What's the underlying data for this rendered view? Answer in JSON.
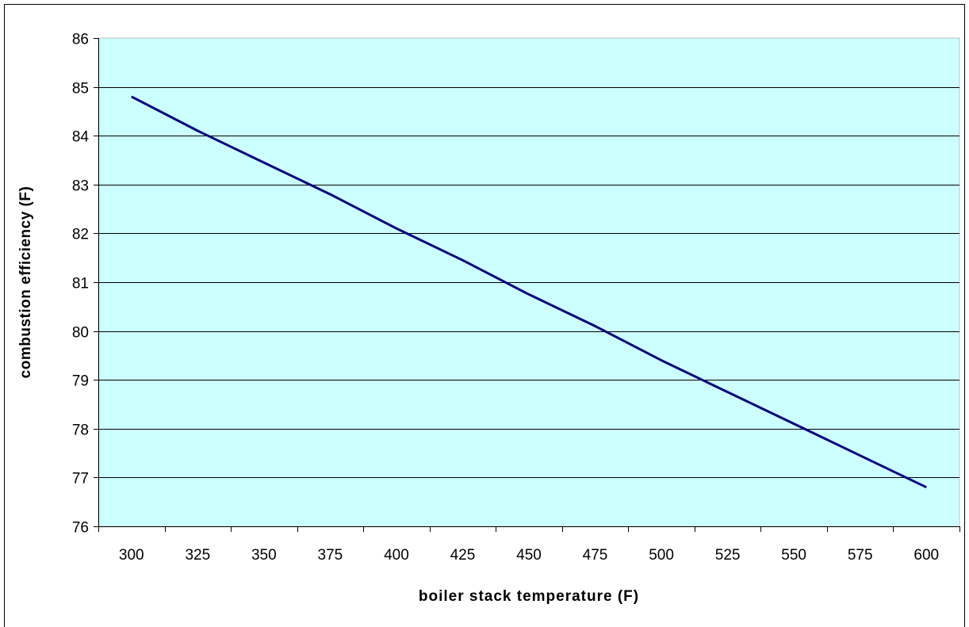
{
  "chart_data": {
    "type": "line",
    "title": "",
    "xlabel": "boiler stack temperature (F)",
    "ylabel": "combustion efficiency (F)",
    "categories": [
      "300",
      "325",
      "350",
      "375",
      "400",
      "425",
      "450",
      "475",
      "500",
      "525",
      "550",
      "575",
      "600"
    ],
    "series": [
      {
        "values": [
          84.8,
          84.1,
          83.45,
          82.8,
          82.1,
          81.45,
          80.75,
          80.1,
          79.4,
          78.75,
          78.1,
          77.45,
          76.8
        ]
      }
    ],
    "ylim": [
      76,
      86
    ],
    "yticks": [
      76,
      77,
      78,
      79,
      80,
      81,
      82,
      83,
      84,
      85,
      86
    ],
    "grid": true,
    "legend": "none",
    "colors": {
      "plot_background": "#ccffff",
      "line": "#000080",
      "gridline": "#000000",
      "plot_border": "#c0c0c0"
    }
  }
}
